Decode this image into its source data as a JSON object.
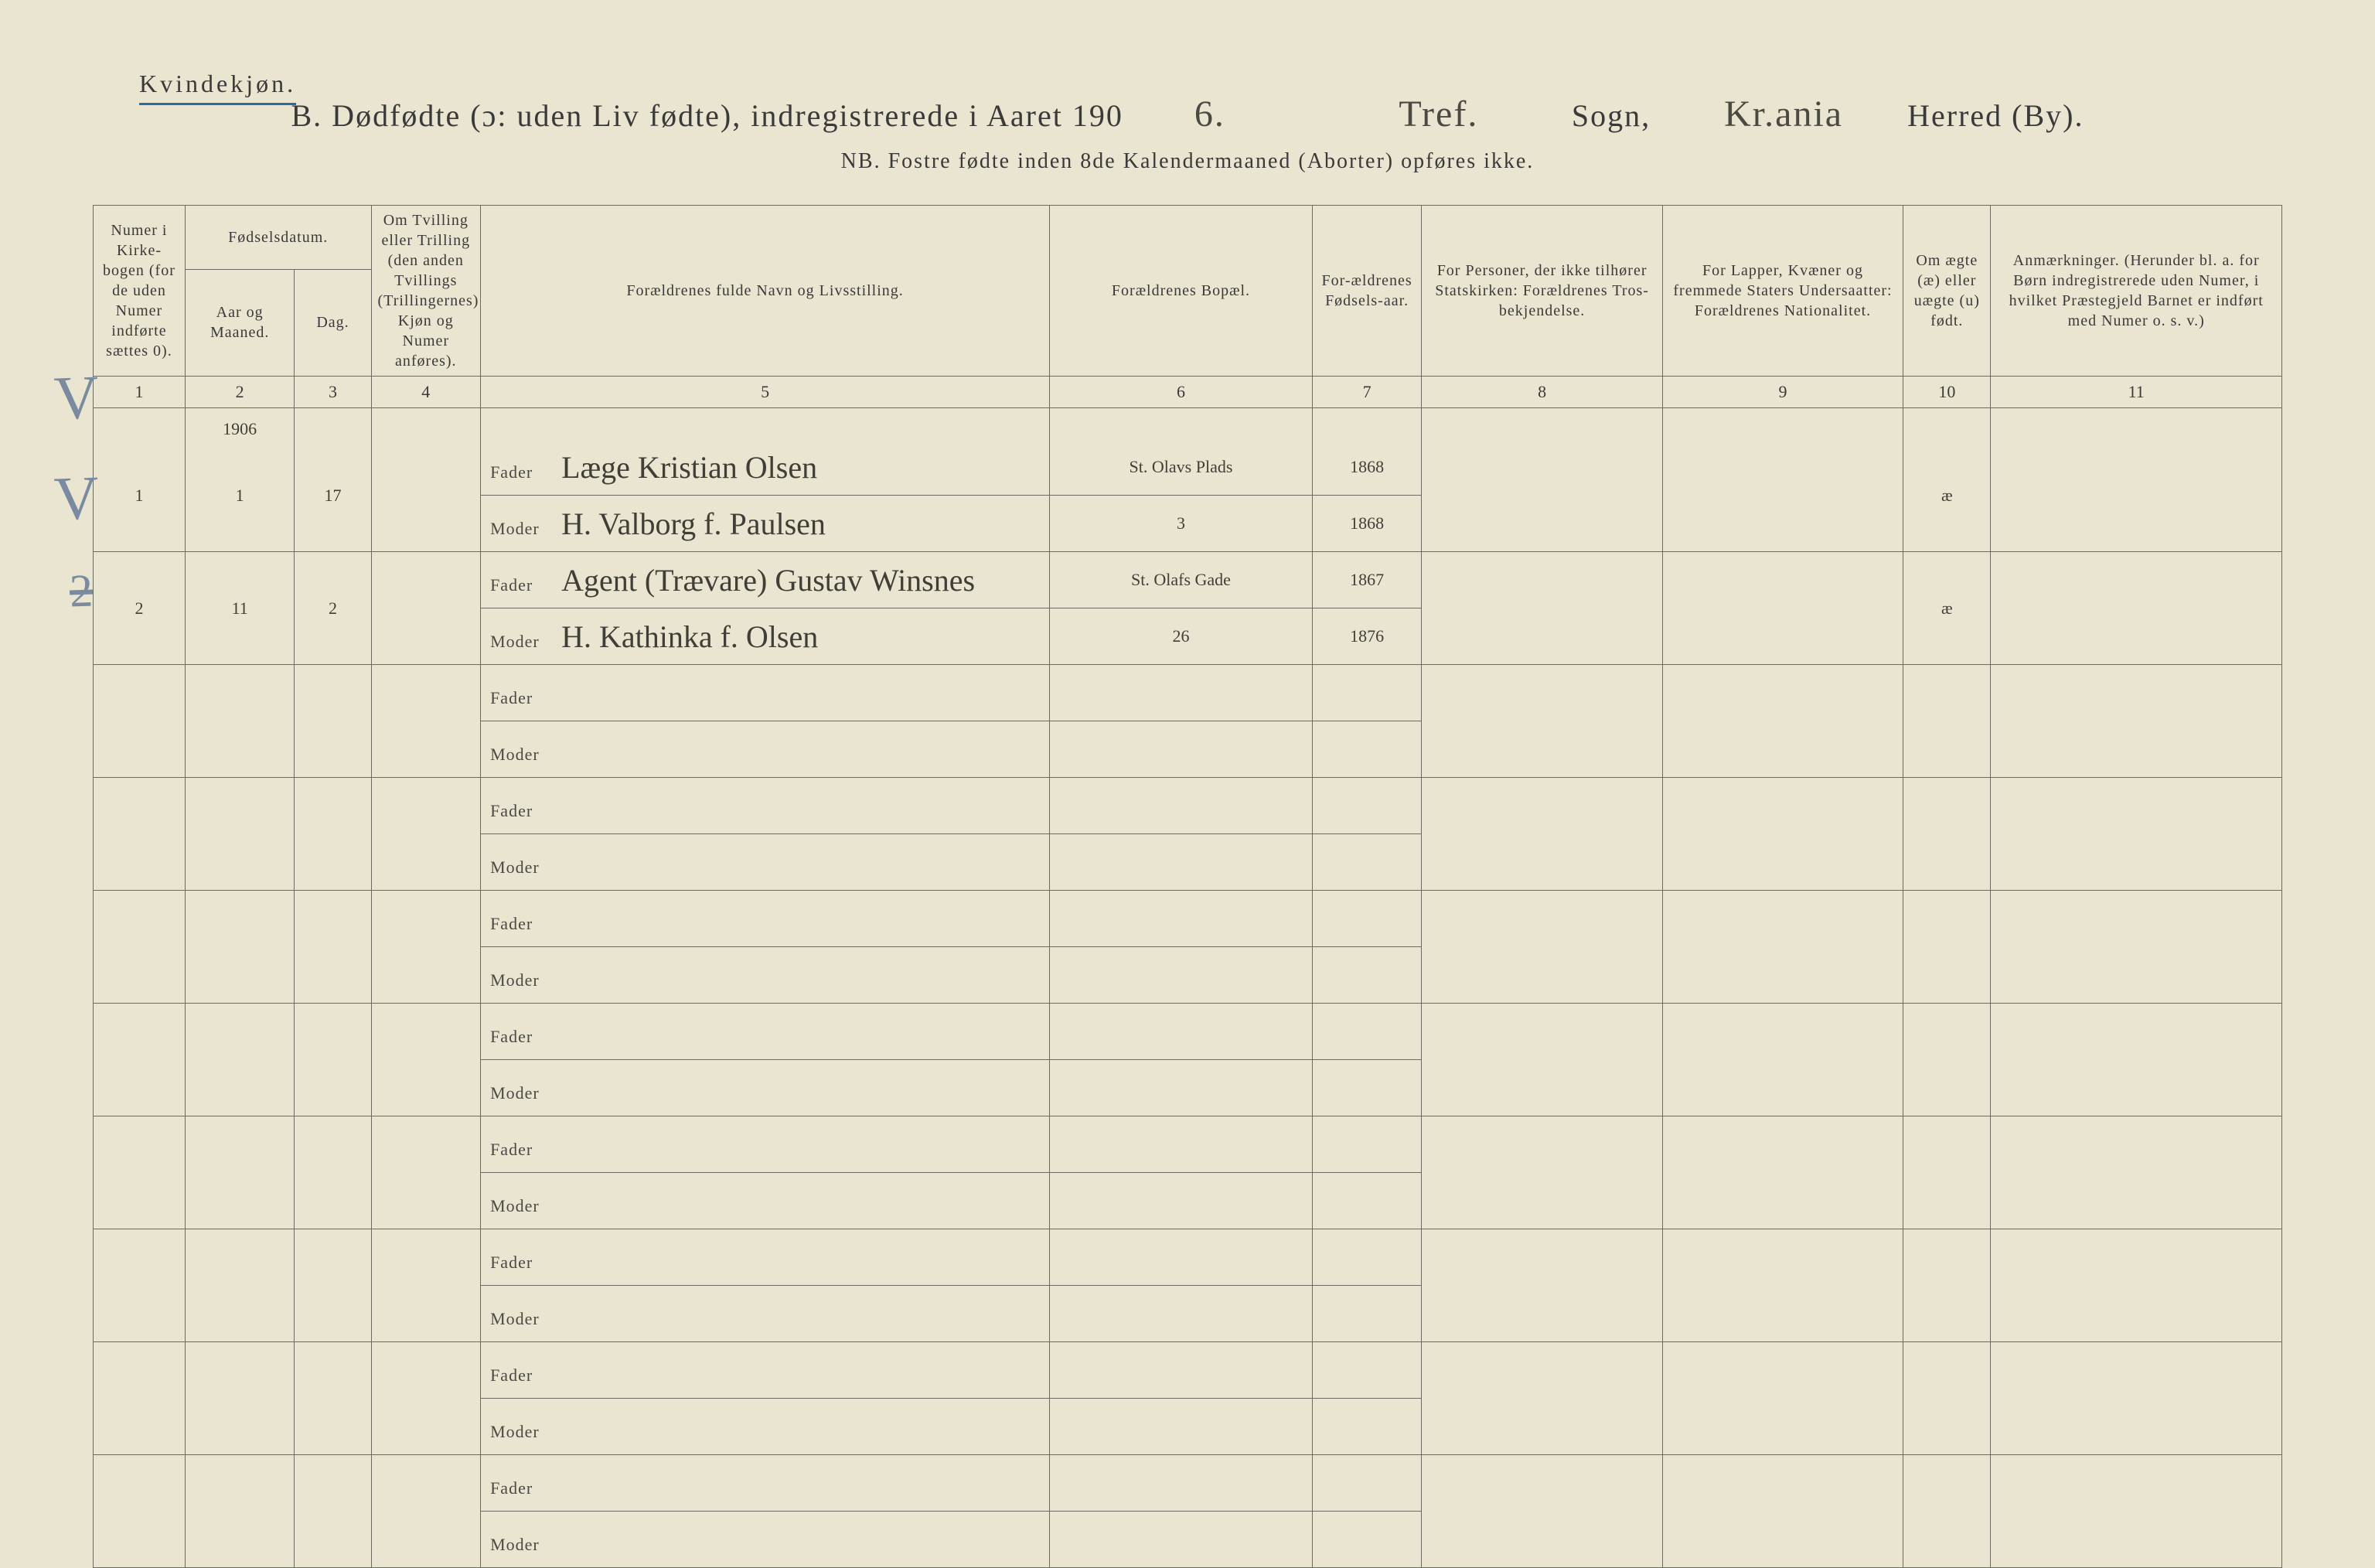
{
  "page": {
    "gender_heading": "Kvindekjøn.",
    "title_prefix": "B.  Dødfødte (ɔ: uden Liv fødte), indregistrerede i Aaret 190",
    "year_suffix_hand": "6.",
    "parish_hand": "Tref.",
    "sogn_label": "Sogn,",
    "herred_hand": "Kr.ania",
    "herred_label": "Herred (By).",
    "subtitle": "NB.  Fostre fødte inden 8de Kalendermaaned (Aborter) opføres ikke."
  },
  "columns": {
    "c1": "Numer i Kirke-bogen (for de uden Numer indførte sættes 0).",
    "c2_group": "Fødselsdatum.",
    "c2": "Aar og Maaned.",
    "c3": "Dag.",
    "c4": "Om Tvilling eller Trilling (den anden Tvillings (Trillingernes) Kjøn og Numer anføres).",
    "c5": "Forældrenes fulde Navn og Livsstilling.",
    "c6": "Forældrenes Bopæl.",
    "c7": "For-ældrenes Fødsels-aar.",
    "c8": "For Personer, der ikke tilhører Statskirken: Forældrenes Tros-bekjendelse.",
    "c9": "For Lapper, Kvæner og fremmede Staters Undersaatter: Forældrenes Nationalitet.",
    "c10": "Om ægte (æ) eller uægte (u) født.",
    "c11": "Anmærkninger. (Herunder bl. a. for Børn indregistrerede uden Numer, i hvilket Præstegjeld Barnet er indført med Numer o. s. v.)"
  },
  "colnums": [
    "1",
    "2",
    "3",
    "4",
    "5",
    "6",
    "7",
    "8",
    "9",
    "10",
    "11"
  ],
  "labels": {
    "fader": "Fader",
    "moder": "Moder"
  },
  "year_header_cell": "1906",
  "rows": [
    {
      "num": "1",
      "aar_mnd": "1",
      "dag": "17",
      "tvilling": "",
      "fader": "Læge Kristian Olsen",
      "moder": "H. Valborg f. Paulsen",
      "bopael_f": "St. Olavs Plads",
      "bopael_m": "3",
      "faar_f": "1868",
      "faar_m": "1868",
      "c8": "",
      "c9": "",
      "aegte": "æ",
      "anm": ""
    },
    {
      "num": "2",
      "aar_mnd": "11",
      "dag": "2",
      "tvilling": "",
      "fader": "Agent (Trævare) Gustav Winsnes",
      "moder": "H. Kathinka f. Olsen",
      "bopael_f": "St. Olafs Gade",
      "bopael_m": "26",
      "faar_f": "1867",
      "faar_m": "1876",
      "c8": "",
      "c9": "",
      "aegte": "æ",
      "anm": ""
    },
    {
      "num": "",
      "aar_mnd": "",
      "dag": "",
      "tvilling": "",
      "fader": "",
      "moder": "",
      "bopael_f": "",
      "bopael_m": "",
      "faar_f": "",
      "faar_m": "",
      "c8": "",
      "c9": "",
      "aegte": "",
      "anm": ""
    },
    {
      "num": "",
      "aar_mnd": "",
      "dag": "",
      "tvilling": "",
      "fader": "",
      "moder": "",
      "bopael_f": "",
      "bopael_m": "",
      "faar_f": "",
      "faar_m": "",
      "c8": "",
      "c9": "",
      "aegte": "",
      "anm": ""
    },
    {
      "num": "",
      "aar_mnd": "",
      "dag": "",
      "tvilling": "",
      "fader": "",
      "moder": "",
      "bopael_f": "",
      "bopael_m": "",
      "faar_f": "",
      "faar_m": "",
      "c8": "",
      "c9": "",
      "aegte": "",
      "anm": ""
    },
    {
      "num": "",
      "aar_mnd": "",
      "dag": "",
      "tvilling": "",
      "fader": "",
      "moder": "",
      "bopael_f": "",
      "bopael_m": "",
      "faar_f": "",
      "faar_m": "",
      "c8": "",
      "c9": "",
      "aegte": "",
      "anm": ""
    },
    {
      "num": "",
      "aar_mnd": "",
      "dag": "",
      "tvilling": "",
      "fader": "",
      "moder": "",
      "bopael_f": "",
      "bopael_m": "",
      "faar_f": "",
      "faar_m": "",
      "c8": "",
      "c9": "",
      "aegte": "",
      "anm": ""
    },
    {
      "num": "",
      "aar_mnd": "",
      "dag": "",
      "tvilling": "",
      "fader": "",
      "moder": "",
      "bopael_f": "",
      "bopael_m": "",
      "faar_f": "",
      "faar_m": "",
      "c8": "",
      "c9": "",
      "aegte": "",
      "anm": ""
    },
    {
      "num": "",
      "aar_mnd": "",
      "dag": "",
      "tvilling": "",
      "fader": "",
      "moder": "",
      "bopael_f": "",
      "bopael_m": "",
      "faar_f": "",
      "faar_m": "",
      "c8": "",
      "c9": "",
      "aegte": "",
      "anm": ""
    },
    {
      "num": "",
      "aar_mnd": "",
      "dag": "",
      "tvilling": "",
      "fader": "",
      "moder": "",
      "bopael_f": "",
      "bopael_m": "",
      "faar_f": "",
      "faar_m": "",
      "c8": "",
      "c9": "",
      "aegte": "",
      "anm": ""
    }
  ],
  "margin_marks": {
    "v1": "V",
    "v2": "V",
    "strike2": "2"
  },
  "styling": {
    "background_color": "#e9e5d0",
    "line_color": "#6b6b60",
    "text_color": "#3a3a3a",
    "underline_color": "#2a6aa8",
    "pencil_color": "#7a8aa0",
    "handwriting_font": "Brush Script MT",
    "print_font": "Times New Roman",
    "header_fontsize_pt": 20,
    "body_fontsize_pt": 22,
    "title_fontsize_pt": 40,
    "hand_title_fontsize_pt": 48,
    "hand_cell_fontsize_pt": 40
  }
}
